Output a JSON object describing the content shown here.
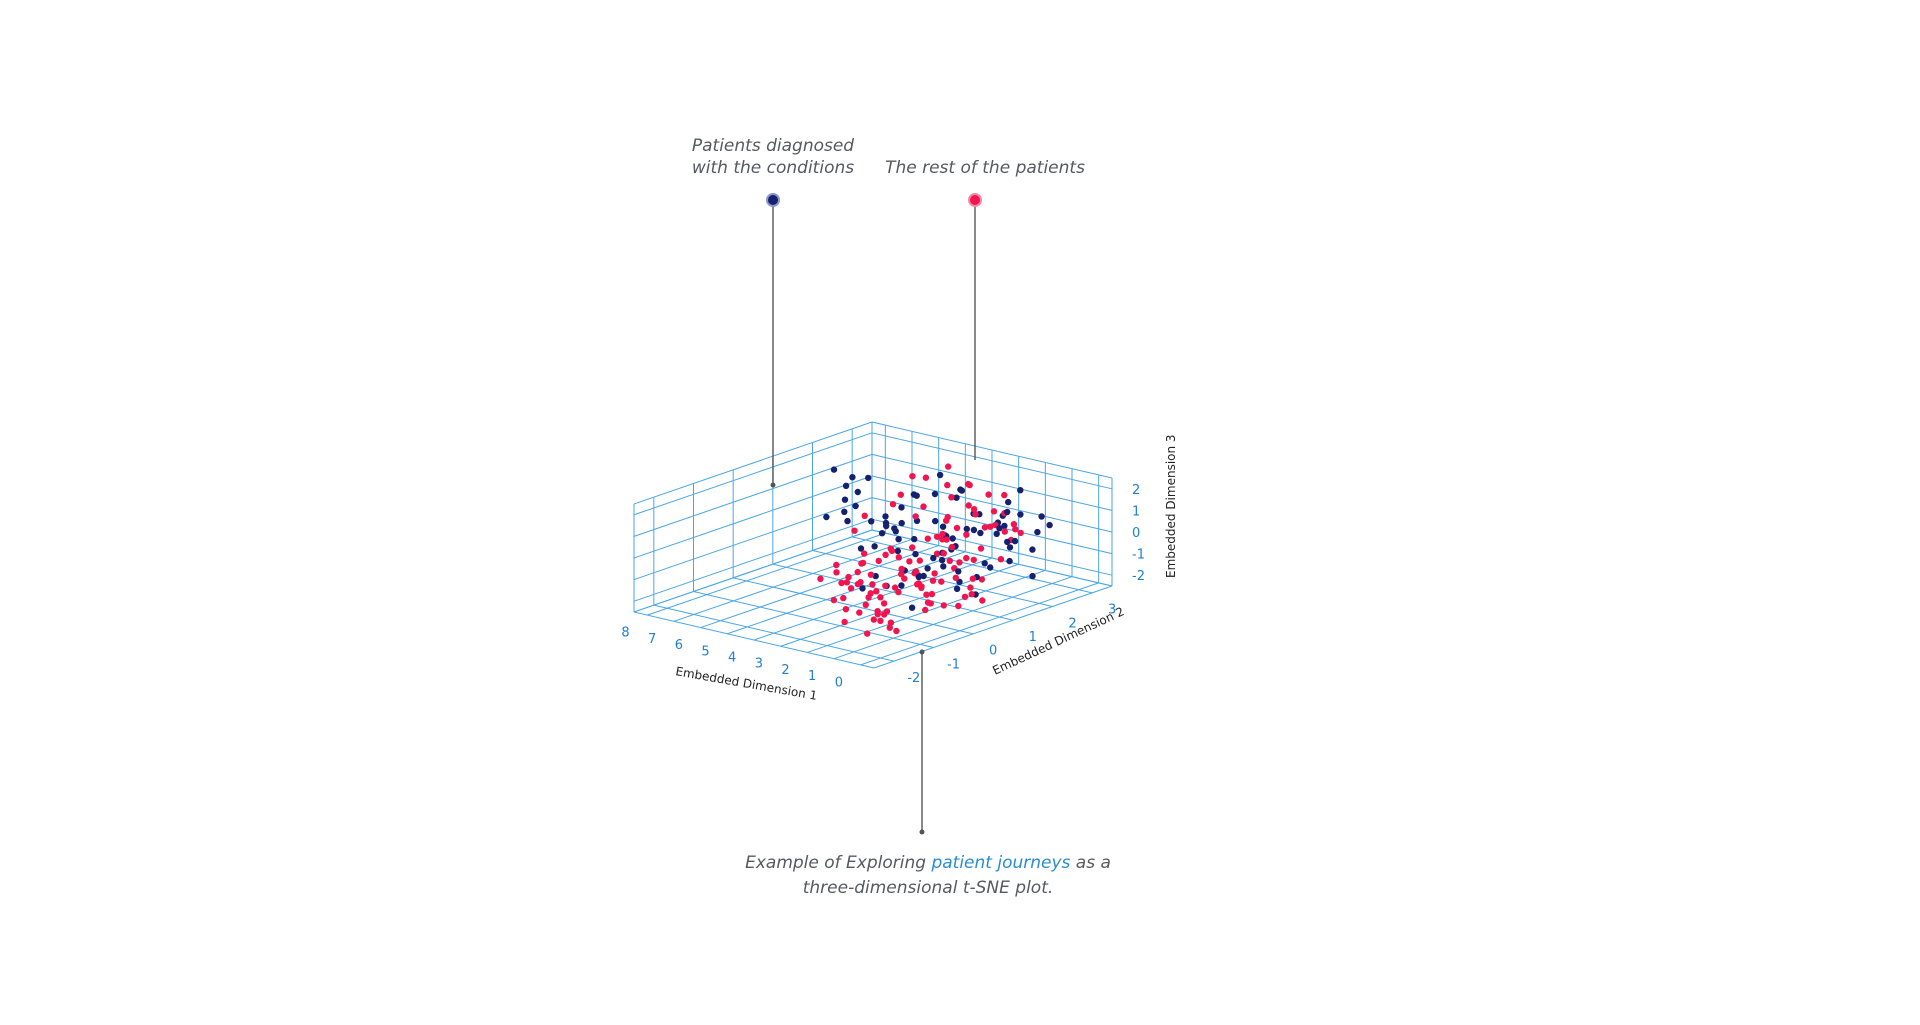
{
  "annotations": {
    "conditions_line1": "Patients diagnosed",
    "conditions_line2": "with the conditions",
    "rest": "The rest of the patients",
    "caption_prefix": "Example of  Exploring ",
    "caption_link": "patient journeys",
    "caption_suffix": " as a",
    "caption_line2": "three-dimensional t-SNE plot."
  },
  "colors": {
    "conditions": "#15206e",
    "rest": "#f0154f",
    "grid": "#4aa6e6",
    "tick": "#1f7fd1",
    "link": "#2a8ccf"
  },
  "chart_data": {
    "type": "scatter",
    "subtype": "scatter3d",
    "xlabel": "Embedded Dimension 1",
    "ylabel": "Embedded Dimension 2",
    "zlabel": "Embedded Dimension 3",
    "x_ticks": [
      "8",
      "7",
      "6",
      "5",
      "4",
      "3",
      "2",
      "1",
      "0"
    ],
    "y_ticks": [
      "3",
      "2",
      "1",
      "0",
      "-1",
      "-2"
    ],
    "z_ticks": [
      "2",
      "1",
      "0",
      "-1",
      "-2"
    ],
    "xlim": [
      -0.5,
      8.5
    ],
    "ylim": [
      -2.5,
      3.5
    ],
    "zlim": [
      -2.5,
      2.5
    ],
    "grid": true,
    "series": [
      {
        "color": "#15206e",
        "points": [
          [
            8.2,
            2.6,
            -1.0
          ],
          [
            7.9,
            3.0,
            0.4
          ],
          [
            7.6,
            2.4,
            0.9
          ],
          [
            7.4,
            3.1,
            -1.3
          ],
          [
            7.1,
            1.6,
            1.9
          ],
          [
            6.8,
            2.0,
            0.7
          ],
          [
            6.5,
            2.9,
            -0.5
          ],
          [
            6.2,
            1.3,
            1.6
          ],
          [
            5.9,
            2.5,
            -0.8
          ],
          [
            5.7,
            1.0,
            0.3
          ],
          [
            5.5,
            3.2,
            1.1
          ],
          [
            5.3,
            2.0,
            -1.6
          ],
          [
            5.0,
            1.5,
            0.1
          ],
          [
            4.8,
            2.6,
            0.8
          ],
          [
            4.6,
            0.6,
            -0.4
          ],
          [
            4.4,
            1.8,
            1.4
          ],
          [
            4.2,
            3.0,
            -0.9
          ],
          [
            4.1,
            0.9,
            0.6
          ],
          [
            3.9,
            2.2,
            -0.2
          ],
          [
            3.7,
            1.4,
            1.8
          ],
          [
            3.6,
            0.3,
            -1.2
          ],
          [
            3.5,
            2.7,
            0.2
          ],
          [
            3.3,
            1.1,
            -0.6
          ],
          [
            3.2,
            0.5,
            1.0
          ],
          [
            3.1,
            2.0,
            1.5
          ],
          [
            3.0,
            1.6,
            -1.4
          ],
          [
            2.9,
            0.8,
            0.4
          ],
          [
            2.8,
            2.4,
            -0.3
          ],
          [
            2.7,
            0.2,
            1.2
          ],
          [
            2.6,
            1.3,
            -0.8
          ],
          [
            2.5,
            2.9,
            0.9
          ],
          [
            2.4,
            0.7,
            -1.1
          ],
          [
            2.3,
            1.9,
            0.3
          ],
          [
            2.2,
            0.4,
            1.7
          ],
          [
            2.1,
            1.2,
            -0.1
          ],
          [
            2.0,
            2.6,
            -1.5
          ],
          [
            1.9,
            0.9,
            0.8
          ],
          [
            1.8,
            1.7,
            1.3
          ],
          [
            1.7,
            0.1,
            -0.5
          ],
          [
            1.6,
            2.2,
            0.5
          ],
          [
            1.5,
            1.0,
            -1.3
          ],
          [
            1.4,
            0.6,
            1.1
          ],
          [
            1.3,
            1.5,
            -0.7
          ],
          [
            1.2,
            2.0,
            0.0
          ],
          [
            1.1,
            0.3,
            0.6
          ],
          [
            1.0,
            1.1,
            -1.0
          ],
          [
            0.9,
            1.8,
            1.6
          ],
          [
            0.8,
            0.5,
            -0.3
          ],
          [
            0.7,
            1.4,
            0.9
          ],
          [
            0.6,
            0.8,
            -1.5
          ],
          [
            0.5,
            1.6,
            0.2
          ],
          [
            0.4,
            0.2,
            -0.8
          ],
          [
            0.3,
            1.2,
            1.4
          ],
          [
            0.2,
            0.9,
            -0.2
          ],
          [
            0.1,
            1.9,
            -1.2
          ],
          [
            4.9,
            0.4,
            1.9
          ],
          [
            3.8,
            0.1,
            -1.7
          ],
          [
            2.9,
            -0.2,
            0.7
          ],
          [
            2.3,
            -0.3,
            -0.9
          ],
          [
            1.7,
            -0.4,
            1.5
          ],
          [
            1.3,
            -0.6,
            -0.4
          ],
          [
            0.9,
            -0.5,
            0.3
          ],
          [
            0.6,
            -0.8,
            -1.1
          ],
          [
            0.4,
            -0.4,
            1.0
          ],
          [
            0.2,
            -0.9,
            0.5
          ],
          [
            2.6,
            1.8,
            2.1
          ],
          [
            3.4,
            2.3,
            1.6
          ],
          [
            1.6,
            2.6,
            1.9
          ],
          [
            4.3,
            1.5,
            -1.9
          ],
          [
            5.1,
            0.8,
            1.3
          ],
          [
            3.0,
            3.1,
            0.0
          ],
          [
            2.0,
            3.3,
            -0.6
          ],
          [
            1.1,
            2.8,
            0.7
          ],
          [
            6.0,
            1.8,
            -0.3
          ],
          [
            5.6,
            0.4,
            0.9
          ],
          [
            4.7,
            1.2,
            -0.1
          ],
          [
            3.6,
            1.8,
            0.4
          ],
          [
            2.5,
            1.5,
            0.1
          ],
          [
            1.8,
            1.1,
            0.2
          ],
          [
            1.5,
            2.4,
            -0.3
          ],
          [
            2.1,
            0.6,
            -0.6
          ],
          [
            1.4,
            1.9,
            0.9
          ],
          [
            0.7,
            2.3,
            -0.4
          ],
          [
            0.5,
            2.6,
            0.6
          ],
          [
            1.0,
            2.2,
            1.2
          ]
        ]
      },
      {
        "color": "#f0154f",
        "points": [
          [
            5.8,
            1.5,
            0.2
          ],
          [
            5.2,
            2.3,
            1.7
          ],
          [
            4.6,
            2.8,
            2.0
          ],
          [
            4.1,
            1.9,
            2.2
          ],
          [
            3.5,
            2.1,
            -1.6
          ],
          [
            3.4,
            0.6,
            2.0
          ],
          [
            3.2,
            2.4,
            1.8
          ],
          [
            3.0,
            1.7,
            2.3
          ],
          [
            2.7,
            0.9,
            1.9
          ],
          [
            2.6,
            2.1,
            -1.3
          ],
          [
            2.4,
            1.4,
            2.1
          ],
          [
            2.2,
            2.6,
            1.5
          ],
          [
            2.1,
            0.3,
            2.0
          ],
          [
            1.9,
            1.5,
            1.8
          ],
          [
            1.8,
            2.5,
            -0.4
          ],
          [
            1.7,
            0.8,
            1.6
          ],
          [
            1.6,
            1.8,
            2.2
          ],
          [
            1.5,
            0.2,
            1.2
          ],
          [
            1.4,
            1.3,
            1.9
          ],
          [
            1.3,
            2.0,
            1.3
          ],
          [
            1.2,
            0.5,
            2.1
          ],
          [
            1.1,
            1.6,
            1.7
          ],
          [
            1.0,
            0.1,
            1.5
          ],
          [
            0.9,
            1.0,
            2.0
          ],
          [
            0.8,
            1.9,
            1.0
          ],
          [
            0.7,
            0.4,
            1.8
          ],
          [
            0.6,
            1.3,
            1.4
          ],
          [
            0.5,
            -0.1,
            1.9
          ],
          [
            0.4,
            0.9,
            1.6
          ],
          [
            0.3,
            1.6,
            1.1
          ],
          [
            0.2,
            0.3,
            1.7
          ],
          [
            0.1,
            1.2,
            1.3
          ],
          [
            0.0,
            -0.2,
            1.5
          ],
          [
            -0.1,
            0.7,
            1.9
          ],
          [
            -0.2,
            1.4,
            1.2
          ],
          [
            1.4,
            -0.8,
            1.4
          ],
          [
            1.0,
            -0.6,
            0.8
          ],
          [
            0.8,
            -1.0,
            1.3
          ],
          [
            0.6,
            -0.7,
            0.5
          ],
          [
            0.4,
            -1.2,
            1.0
          ],
          [
            0.2,
            -0.9,
            0.2
          ],
          [
            0.0,
            -1.4,
            0.8
          ],
          [
            -0.2,
            -1.1,
            0.3
          ],
          [
            1.2,
            -1.3,
            -0.2
          ],
          [
            0.9,
            -1.6,
            0.4
          ],
          [
            0.7,
            -1.9,
            -0.3
          ],
          [
            0.5,
            -1.5,
            -0.8
          ],
          [
            0.3,
            -1.8,
            0.1
          ],
          [
            0.1,
            -2.0,
            -0.5
          ],
          [
            -0.1,
            -1.7,
            0.6
          ],
          [
            1.3,
            -0.2,
            -0.6
          ],
          [
            1.1,
            -0.4,
            0.1
          ],
          [
            0.9,
            -0.1,
            -1.0
          ],
          [
            0.7,
            -0.5,
            -0.4
          ],
          [
            0.5,
            -0.3,
            0.2
          ],
          [
            0.3,
            -0.6,
            -0.9
          ],
          [
            0.1,
            -0.4,
            0.0
          ],
          [
            -0.1,
            -0.8,
            -0.7
          ],
          [
            1.5,
            -0.9,
            -1.1
          ],
          [
            1.2,
            -1.1,
            -1.4
          ],
          [
            1.0,
            -1.4,
            -1.0
          ],
          [
            0.8,
            -1.2,
            -1.6
          ],
          [
            0.6,
            -1.6,
            -1.2
          ],
          [
            0.4,
            -1.9,
            -0.9
          ],
          [
            0.2,
            -2.2,
            -1.3
          ],
          [
            0.0,
            -1.6,
            -1.5
          ],
          [
            -0.2,
            -1.9,
            -1.1
          ],
          [
            1.6,
            -1.5,
            0.7
          ],
          [
            1.4,
            -1.8,
            0.2
          ],
          [
            1.2,
            -2.0,
            0.9
          ],
          [
            1.0,
            -2.2,
            -0.4
          ],
          [
            0.8,
            -2.4,
            0.3
          ],
          [
            0.6,
            -2.1,
            0.9
          ],
          [
            1.8,
            -0.5,
            1.0
          ],
          [
            1.7,
            -1.1,
            0.3
          ],
          [
            1.9,
            -0.2,
            -0.3
          ],
          [
            2.0,
            -0.7,
            0.6
          ],
          [
            2.2,
            -0.4,
            -0.8
          ],
          [
            2.1,
            -1.0,
            1.1
          ],
          [
            2.3,
            -1.3,
            -0.1
          ],
          [
            2.5,
            -0.8,
            0.4
          ],
          [
            2.4,
            -1.5,
            0.8
          ],
          [
            2.6,
            -0.5,
            -1.2
          ],
          [
            2.8,
            -1.1,
            -0.4
          ],
          [
            2.7,
            -1.7,
            0.2
          ],
          [
            1.3,
            0.3,
            0.5
          ],
          [
            1.1,
            0.6,
            -0.3
          ],
          [
            0.9,
            0.2,
            0.7
          ],
          [
            0.7,
            0.8,
            -0.8
          ],
          [
            0.5,
            0.5,
            0.4
          ],
          [
            0.3,
            0.1,
            -0.2
          ],
          [
            0.1,
            0.6,
            0.9
          ],
          [
            -0.1,
            0.2,
            -0.6
          ],
          [
            -0.2,
            0.9,
            0.3
          ],
          [
            0.4,
            0.4,
            -1.3
          ],
          [
            0.2,
            0.7,
            -1.6
          ],
          [
            0.0,
            0.3,
            -1.0
          ],
          [
            0.6,
            0.0,
            -1.5
          ],
          [
            0.8,
            0.5,
            -1.9
          ],
          [
            1.0,
            -0.2,
            -1.7
          ],
          [
            1.4,
            0.1,
            -1.3
          ],
          [
            1.6,
            0.4,
            -0.9
          ],
          [
            1.8,
            0.2,
            0.1
          ],
          [
            1.7,
            0.7,
            0.8
          ],
          [
            1.5,
            1.0,
            -0.4
          ],
          [
            3.7,
            1.0,
            2.1
          ],
          [
            2.9,
            0.4,
            -1.8
          ],
          [
            4.0,
            2.9,
            1.3
          ],
          [
            2.0,
            1.9,
            -1.9
          ],
          [
            3.8,
            -0.1,
            1.1
          ],
          [
            -0.1,
            -0.4,
            2.0
          ],
          [
            0.3,
            -1.0,
            1.9
          ],
          [
            0.7,
            -1.4,
            1.7
          ],
          [
            1.1,
            -1.7,
            1.4
          ],
          [
            1.5,
            -2.1,
            1.1
          ],
          [
            0.0,
            -2.3,
            0.5
          ],
          [
            0.2,
            -2.4,
            -0.2
          ],
          [
            0.4,
            -2.3,
            1.0
          ],
          [
            0.9,
            -2.3,
            -0.9
          ],
          [
            1.3,
            -2.3,
            0.0
          ]
        ]
      }
    ]
  }
}
